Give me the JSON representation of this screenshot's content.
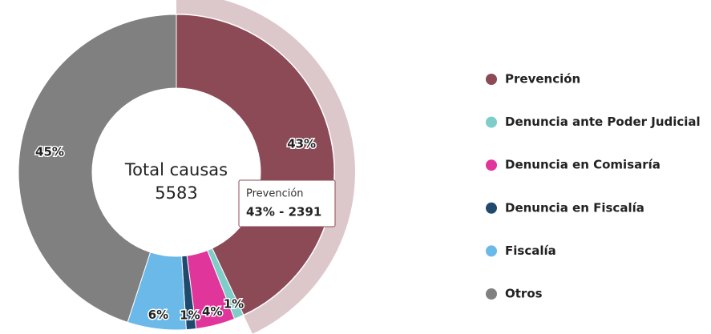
{
  "chart_data": {
    "type": "donut",
    "center_title": "Total causas",
    "center_value": 5583,
    "categories": [
      "Prevención",
      "Denuncia ante Poder Judicial",
      "Denuncia en Comisaría",
      "Denuncia en Fiscalía",
      "Fiscalía",
      "Otros"
    ],
    "values": [
      43,
      1,
      4,
      1,
      6,
      45
    ],
    "value_labels": [
      "43%",
      "1%",
      "4%",
      "1%",
      "6%",
      "45%"
    ],
    "colors": [
      "#8b4a55",
      "#7ecdc8",
      "#e0359a",
      "#1f4a6e",
      "#6ab9e8",
      "#808080"
    ],
    "tooltip": {
      "title": "Prevención",
      "text": "43% - 2391"
    },
    "legend": "right"
  }
}
